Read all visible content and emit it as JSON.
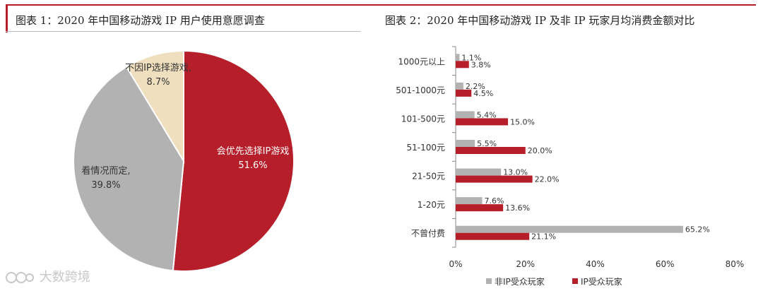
{
  "chart_data": [
    {
      "type": "pie",
      "title": "图表 1：2020 年中国移动游戏 IP 用户使用意愿调查",
      "slices": [
        {
          "label": "会优先选择IP游戏",
          "value": 51.6,
          "value_label": "51.6%",
          "color": "#b61e2a"
        },
        {
          "label": "看情况而定,",
          "value": 39.8,
          "value_label": "39.8%",
          "color": "#b2b2b2"
        },
        {
          "label": "不因IP选择游戏,",
          "value": 8.7,
          "value_label": "8.7%",
          "color": "#f0dfbf"
        }
      ]
    },
    {
      "type": "bar",
      "orientation": "horizontal",
      "title": "图表 2：2020 年中国移动游戏 IP 及非 IP 玩家月均消费金额对比",
      "categories": [
        "1000元以上",
        "501-1000元",
        "101-500元",
        "51-100元",
        "21-50元",
        "1-20元",
        "不曾付费"
      ],
      "series": [
        {
          "name": "非IP受众玩家",
          "color": "#b2b2b2",
          "values": [
            1.1,
            2.2,
            5.4,
            5.5,
            13.0,
            7.6,
            65.2
          ],
          "labels": [
            "1.1%",
            "2.2%",
            "5.4%",
            "5.5%",
            "13.0%",
            "7.6%",
            "65.2%"
          ]
        },
        {
          "name": "IP受众玩家",
          "color": "#b61e2a",
          "values": [
            3.8,
            4.5,
            15.0,
            20.0,
            22.0,
            13.6,
            21.1
          ],
          "labels": [
            "3.8%",
            "4.5%",
            "15.0%",
            "20.0%",
            "22.0%",
            "13.6%",
            "21.1%"
          ]
        }
      ],
      "xlim": [
        0,
        80
      ],
      "xticks": [
        0,
        20,
        40,
        60,
        80
      ],
      "xtick_labels": [
        "0%",
        "20%",
        "40%",
        "60%",
        "80%"
      ],
      "legend": "bottom"
    }
  ],
  "watermark": {
    "text": "大数跨境"
  }
}
